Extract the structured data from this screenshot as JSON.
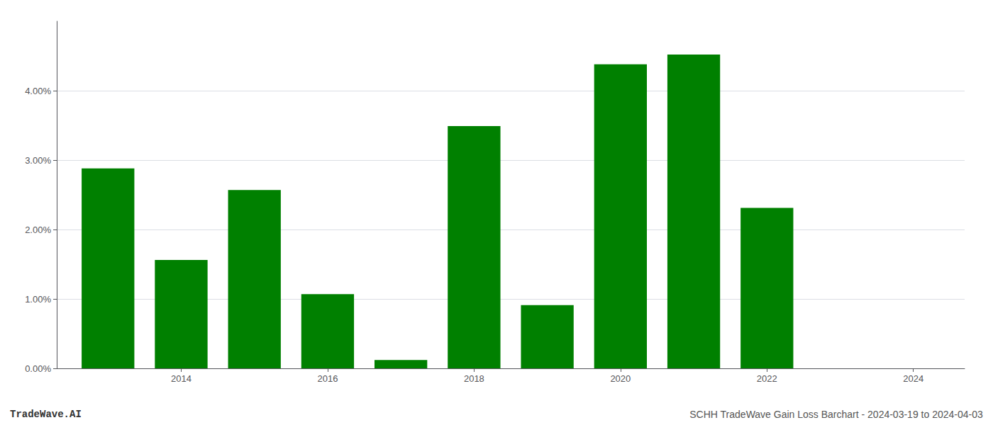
{
  "chart_data": {
    "type": "bar",
    "x": [
      2013,
      2014,
      2015,
      2016,
      2017,
      2018,
      2019,
      2020,
      2021,
      2022,
      2023
    ],
    "values": [
      0.0288,
      0.0156,
      0.0257,
      0.0107,
      0.0012,
      0.0349,
      0.0091,
      0.0438,
      0.0452,
      0.0231,
      0.0
    ],
    "color": "#008000",
    "xlim": [
      2012.3,
      2024.7
    ],
    "xticks": [
      2014,
      2016,
      2018,
      2020,
      2022,
      2024
    ],
    "ylim": [
      0,
      0.05
    ],
    "yticks": [
      {
        "value": 0.0,
        "label": "0.00%"
      },
      {
        "value": 0.01,
        "label": "1.00%"
      },
      {
        "value": 0.02,
        "label": "2.00%"
      },
      {
        "value": 0.03,
        "label": "3.00%"
      },
      {
        "value": 0.04,
        "label": "4.00%"
      }
    ],
    "grid": true,
    "annotations": [
      "TradeWave.AI",
      "SCHH TradeWave Gain Loss Barchart - 2024-03-19 to 2024-04-03"
    ]
  }
}
